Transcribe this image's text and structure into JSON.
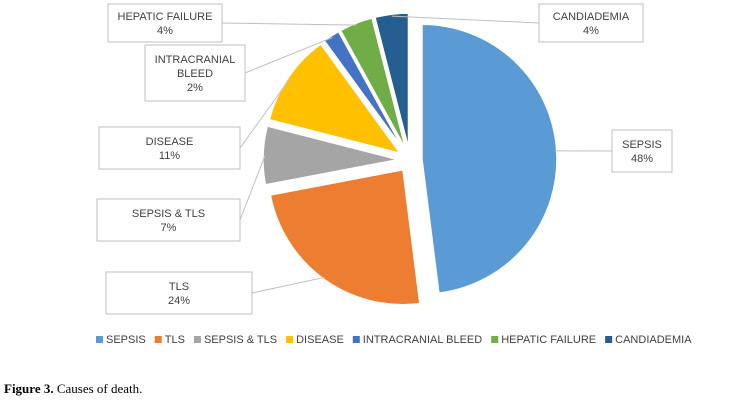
{
  "chart_data": {
    "type": "pie",
    "categories": [
      "SEPSIS",
      "TLS",
      "SEPSIS & TLS",
      "DISEASE",
      "INTRACRANIAL BLEED",
      "HEPATIC FAILURE",
      "CANDIADEMIA"
    ],
    "values": [
      48,
      24,
      7,
      11,
      2,
      4,
      4
    ],
    "value_labels": [
      "48%",
      "24%",
      "7%",
      "11%",
      "2%",
      "4%",
      "4%"
    ],
    "colors": [
      "#5b9bd5",
      "#ed7d31",
      "#a5a5a5",
      "#ffc000",
      "#4472c4",
      "#70ad47",
      "#255e91"
    ],
    "legend_placement": "bottom"
  },
  "caption": {
    "label": "Figure 3.",
    "text": " Causes of death."
  }
}
